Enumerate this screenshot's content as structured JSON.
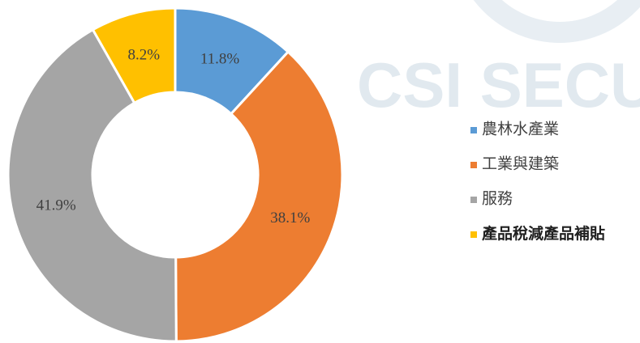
{
  "chart_data": {
    "type": "pie",
    "donut": true,
    "watermark": "CSI SECU",
    "categories": [
      "農林水產業",
      "工業與建築",
      "服務",
      "產品稅減產品補貼"
    ],
    "values": [
      11.8,
      38.1,
      41.9,
      8.2
    ],
    "value_labels": [
      "11.8%",
      "38.1%",
      "41.9%",
      "8.2%"
    ],
    "colors": [
      "#5b9bd5",
      "#ed7d31",
      "#a5a5a5",
      "#ffc000"
    ],
    "legend": "right"
  }
}
